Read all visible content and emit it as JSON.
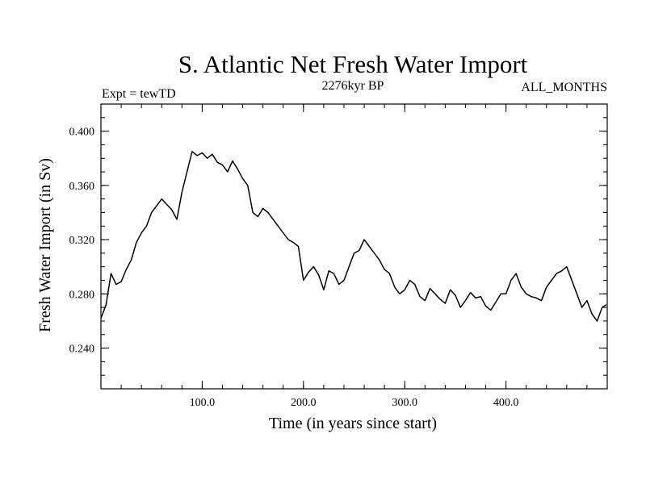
{
  "chart_data": {
    "type": "line",
    "title": "S. Atlantic Net Fresh Water Import",
    "subtitle_left": "Expt = tewTD",
    "subtitle_center": "2276kyr BP",
    "subtitle_right": "ALL_MONTHS",
    "xlabel": "Time (in years since start)",
    "ylabel": "Fresh Water Import (in Sv)",
    "xlim": [
      0,
      500
    ],
    "ylim": [
      0.21,
      0.42
    ],
    "xticks": [
      100,
      200,
      300,
      400
    ],
    "xtick_labels": [
      "100.0",
      "200.0",
      "300.0",
      "400.0"
    ],
    "yticks": [
      0.24,
      0.28,
      0.32,
      0.36,
      0.4
    ],
    "ytick_labels": [
      "0.240",
      "0.280",
      "0.320",
      "0.360",
      "0.400"
    ],
    "grid": false,
    "series": [
      {
        "name": "Fresh Water Import",
        "color": "#000000",
        "x": [
          0,
          5,
          10,
          15,
          20,
          25,
          30,
          35,
          40,
          45,
          50,
          55,
          60,
          65,
          70,
          75,
          80,
          85,
          90,
          95,
          100,
          105,
          110,
          115,
          120,
          125,
          130,
          135,
          140,
          145,
          150,
          155,
          160,
          165,
          170,
          175,
          180,
          185,
          190,
          195,
          200,
          205,
          210,
          215,
          220,
          225,
          230,
          235,
          240,
          245,
          250,
          255,
          260,
          265,
          270,
          275,
          280,
          285,
          290,
          295,
          300,
          305,
          310,
          315,
          320,
          325,
          330,
          335,
          340,
          345,
          350,
          355,
          360,
          365,
          370,
          375,
          380,
          385,
          390,
          395,
          400,
          405,
          410,
          415,
          420,
          425,
          430,
          435,
          440,
          445,
          450,
          455,
          460,
          465,
          470,
          475,
          480,
          485,
          490,
          495,
          499
        ],
        "values": [
          0.262,
          0.272,
          0.295,
          0.287,
          0.289,
          0.298,
          0.305,
          0.318,
          0.325,
          0.33,
          0.34,
          0.345,
          0.35,
          0.346,
          0.342,
          0.335,
          0.355,
          0.37,
          0.385,
          0.382,
          0.384,
          0.38,
          0.383,
          0.377,
          0.375,
          0.37,
          0.378,
          0.372,
          0.365,
          0.36,
          0.34,
          0.337,
          0.343,
          0.34,
          0.335,
          0.33,
          0.325,
          0.32,
          0.318,
          0.315,
          0.29,
          0.296,
          0.3,
          0.294,
          0.283,
          0.297,
          0.295,
          0.287,
          0.29,
          0.3,
          0.31,
          0.312,
          0.32,
          0.315,
          0.31,
          0.305,
          0.298,
          0.295,
          0.285,
          0.28,
          0.283,
          0.29,
          0.287,
          0.278,
          0.275,
          0.284,
          0.28,
          0.276,
          0.273,
          0.283,
          0.279,
          0.27,
          0.275,
          0.281,
          0.277,
          0.278,
          0.271,
          0.268,
          0.274,
          0.28,
          0.28,
          0.29,
          0.295,
          0.285,
          0.28,
          0.278,
          0.277,
          0.275,
          0.285,
          0.29,
          0.295,
          0.297,
          0.3,
          0.29,
          0.28,
          0.27,
          0.275,
          0.265,
          0.26,
          0.27,
          0.272
        ]
      }
    ]
  }
}
